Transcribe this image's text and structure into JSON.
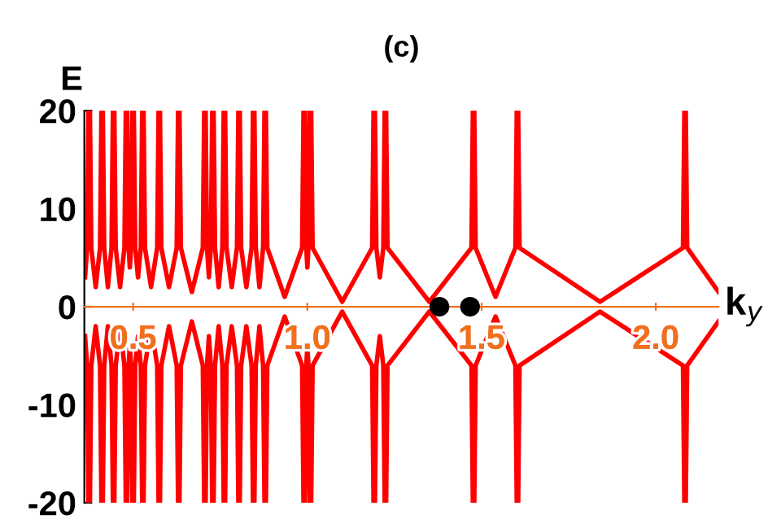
{
  "chart_data": {
    "type": "line",
    "title": "(c)",
    "xlabel": "k$_{y}$",
    "ylabel": "E",
    "xlim": [
      0.36,
      2.18
    ],
    "ylim": [
      -20,
      20
    ],
    "xticks": [
      {
        "value": 0.5,
        "label": "0.5"
      },
      {
        "value": 1.0,
        "label": "1.0"
      },
      {
        "value": 1.5,
        "label": "1.5"
      },
      {
        "value": 2.0,
        "label": "2.0"
      }
    ],
    "yticks": [
      -20,
      -10,
      0,
      10,
      20
    ],
    "grid": false,
    "legend": false,
    "marker": "none",
    "line_style": "solid",
    "series": [
      {
        "color": "#ff0000",
        "x": [
          0.362,
          0.368,
          0.372,
          0.374,
          0.376,
          0.38,
          0.3925,
          0.405,
          0.409,
          0.411,
          0.413,
          0.417,
          0.4275,
          0.438,
          0.442,
          0.444,
          0.446,
          0.45,
          0.4625,
          0.475,
          0.479,
          0.481,
          0.483,
          0.487,
          0.4905,
          0.494,
          0.498,
          0.5,
          0.502,
          0.506,
          0.514,
          0.522,
          0.526,
          0.528,
          0.53,
          0.534,
          0.5515,
          0.569,
          0.573,
          0.575,
          0.577,
          0.581,
          0.603,
          0.625,
          0.629,
          0.631,
          0.633,
          0.637,
          0.6685,
          0.7,
          0.704,
          0.706,
          0.708,
          0.712,
          0.7175,
          0.723,
          0.727,
          0.729,
          0.731,
          0.735,
          0.7455,
          0.756,
          0.76,
          0.762,
          0.764,
          0.768,
          0.783,
          0.798,
          0.802,
          0.804,
          0.806,
          0.81,
          0.825,
          0.84,
          0.844,
          0.846,
          0.848,
          0.852,
          0.8625,
          0.873,
          0.877,
          0.879,
          0.881,
          0.885,
          0.935,
          0.985,
          0.989,
          0.991,
          0.993,
          0.997,
          1.0,
          1.003,
          1.007,
          1.009,
          1.011,
          1.015,
          1.1,
          1.186,
          1.19,
          1.192,
          1.194,
          1.198,
          1.208,
          1.218,
          1.222,
          1.224,
          1.226,
          1.23,
          1.35,
          1.471,
          1.475,
          1.477,
          1.479,
          1.483,
          1.54,
          1.597,
          1.601,
          1.603,
          1.605,
          1.609,
          1.84,
          2.078,
          2.082,
          2.084,
          2.086,
          2.09,
          2.18
        ],
        "values": [
          3,
          6,
          20,
          null,
          20,
          6,
          2,
          6,
          20,
          null,
          20,
          6,
          2,
          6,
          20,
          null,
          20,
          6,
          2,
          6,
          20,
          null,
          20,
          6,
          4,
          6,
          20,
          null,
          20,
          6,
          3,
          6,
          20,
          null,
          20,
          6,
          2,
          6,
          20,
          null,
          20,
          6,
          2,
          6,
          20,
          null,
          20,
          6,
          1.5,
          6,
          20,
          null,
          20,
          6,
          3,
          6,
          20,
          null,
          20,
          6,
          2,
          6,
          20,
          null,
          20,
          6,
          2,
          6,
          20,
          null,
          20,
          6,
          2,
          6,
          20,
          null,
          20,
          6,
          2,
          6,
          20,
          null,
          20,
          6,
          1,
          6,
          20,
          null,
          20,
          6,
          4,
          6,
          20,
          null,
          20,
          6,
          0.5,
          6,
          20,
          null,
          20,
          6,
          3,
          6,
          20,
          null,
          20,
          6,
          0.5,
          6,
          20,
          null,
          20,
          6,
          1,
          6,
          20,
          null,
          20,
          6,
          0.5,
          6,
          20,
          null,
          20,
          6,
          1.5
        ]
      },
      {
        "color": "#ff0000",
        "x": [
          0.362,
          0.368,
          0.372,
          0.374,
          0.376,
          0.38,
          0.3925,
          0.405,
          0.409,
          0.411,
          0.413,
          0.417,
          0.4275,
          0.438,
          0.442,
          0.444,
          0.446,
          0.45,
          0.4625,
          0.475,
          0.479,
          0.481,
          0.483,
          0.487,
          0.4905,
          0.494,
          0.498,
          0.5,
          0.502,
          0.506,
          0.514,
          0.522,
          0.526,
          0.528,
          0.53,
          0.534,
          0.5515,
          0.569,
          0.573,
          0.575,
          0.577,
          0.581,
          0.603,
          0.625,
          0.629,
          0.631,
          0.633,
          0.637,
          0.6685,
          0.7,
          0.704,
          0.706,
          0.708,
          0.712,
          0.7175,
          0.723,
          0.727,
          0.729,
          0.731,
          0.735,
          0.7455,
          0.756,
          0.76,
          0.762,
          0.764,
          0.768,
          0.783,
          0.798,
          0.802,
          0.804,
          0.806,
          0.81,
          0.825,
          0.84,
          0.844,
          0.846,
          0.848,
          0.852,
          0.8625,
          0.873,
          0.877,
          0.879,
          0.881,
          0.885,
          0.935,
          0.985,
          0.989,
          0.991,
          0.993,
          0.997,
          1.0,
          1.003,
          1.007,
          1.009,
          1.011,
          1.015,
          1.1,
          1.186,
          1.19,
          1.192,
          1.194,
          1.198,
          1.208,
          1.218,
          1.222,
          1.224,
          1.226,
          1.23,
          1.35,
          1.471,
          1.475,
          1.477,
          1.479,
          1.483,
          1.54,
          1.597,
          1.601,
          1.603,
          1.605,
          1.609,
          1.84,
          2.078,
          2.082,
          2.084,
          2.086,
          2.09,
          2.18
        ],
        "values": [
          -3,
          -6,
          -20,
          null,
          -20,
          -6,
          -2,
          -6,
          -20,
          null,
          -20,
          -6,
          -2,
          -6,
          -20,
          null,
          -20,
          -6,
          -2,
          -6,
          -20,
          null,
          -20,
          -6,
          -4,
          -6,
          -20,
          null,
          -20,
          -6,
          -3,
          -6,
          -20,
          null,
          -20,
          -6,
          -2,
          -6,
          -20,
          null,
          -20,
          -6,
          -2,
          -6,
          -20,
          null,
          -20,
          -6,
          -1.5,
          -6,
          -20,
          null,
          -20,
          -6,
          -3,
          -6,
          -20,
          null,
          -20,
          -6,
          -2,
          -6,
          -20,
          null,
          -20,
          -6,
          -2,
          -6,
          -20,
          null,
          -20,
          -6,
          -2,
          -6,
          -20,
          null,
          -20,
          -6,
          -2,
          -6,
          -20,
          null,
          -20,
          -6,
          -1,
          -6,
          -20,
          null,
          -20,
          -6,
          -4,
          -6,
          -20,
          null,
          -20,
          -6,
          -0.5,
          -6,
          -20,
          null,
          -20,
          -6,
          -3,
          -6,
          -20,
          null,
          -20,
          -6,
          -0.5,
          -6,
          -20,
          null,
          -20,
          -6,
          -1,
          -6,
          -20,
          null,
          -20,
          -6,
          -0.5,
          -6,
          -20,
          null,
          -20,
          -6,
          -1.5
        ]
      },
      {
        "type": "scatter",
        "marker": "circle",
        "color": "#000000",
        "x": [
          1.379,
          1.467
        ],
        "values": [
          0,
          0
        ]
      }
    ]
  }
}
